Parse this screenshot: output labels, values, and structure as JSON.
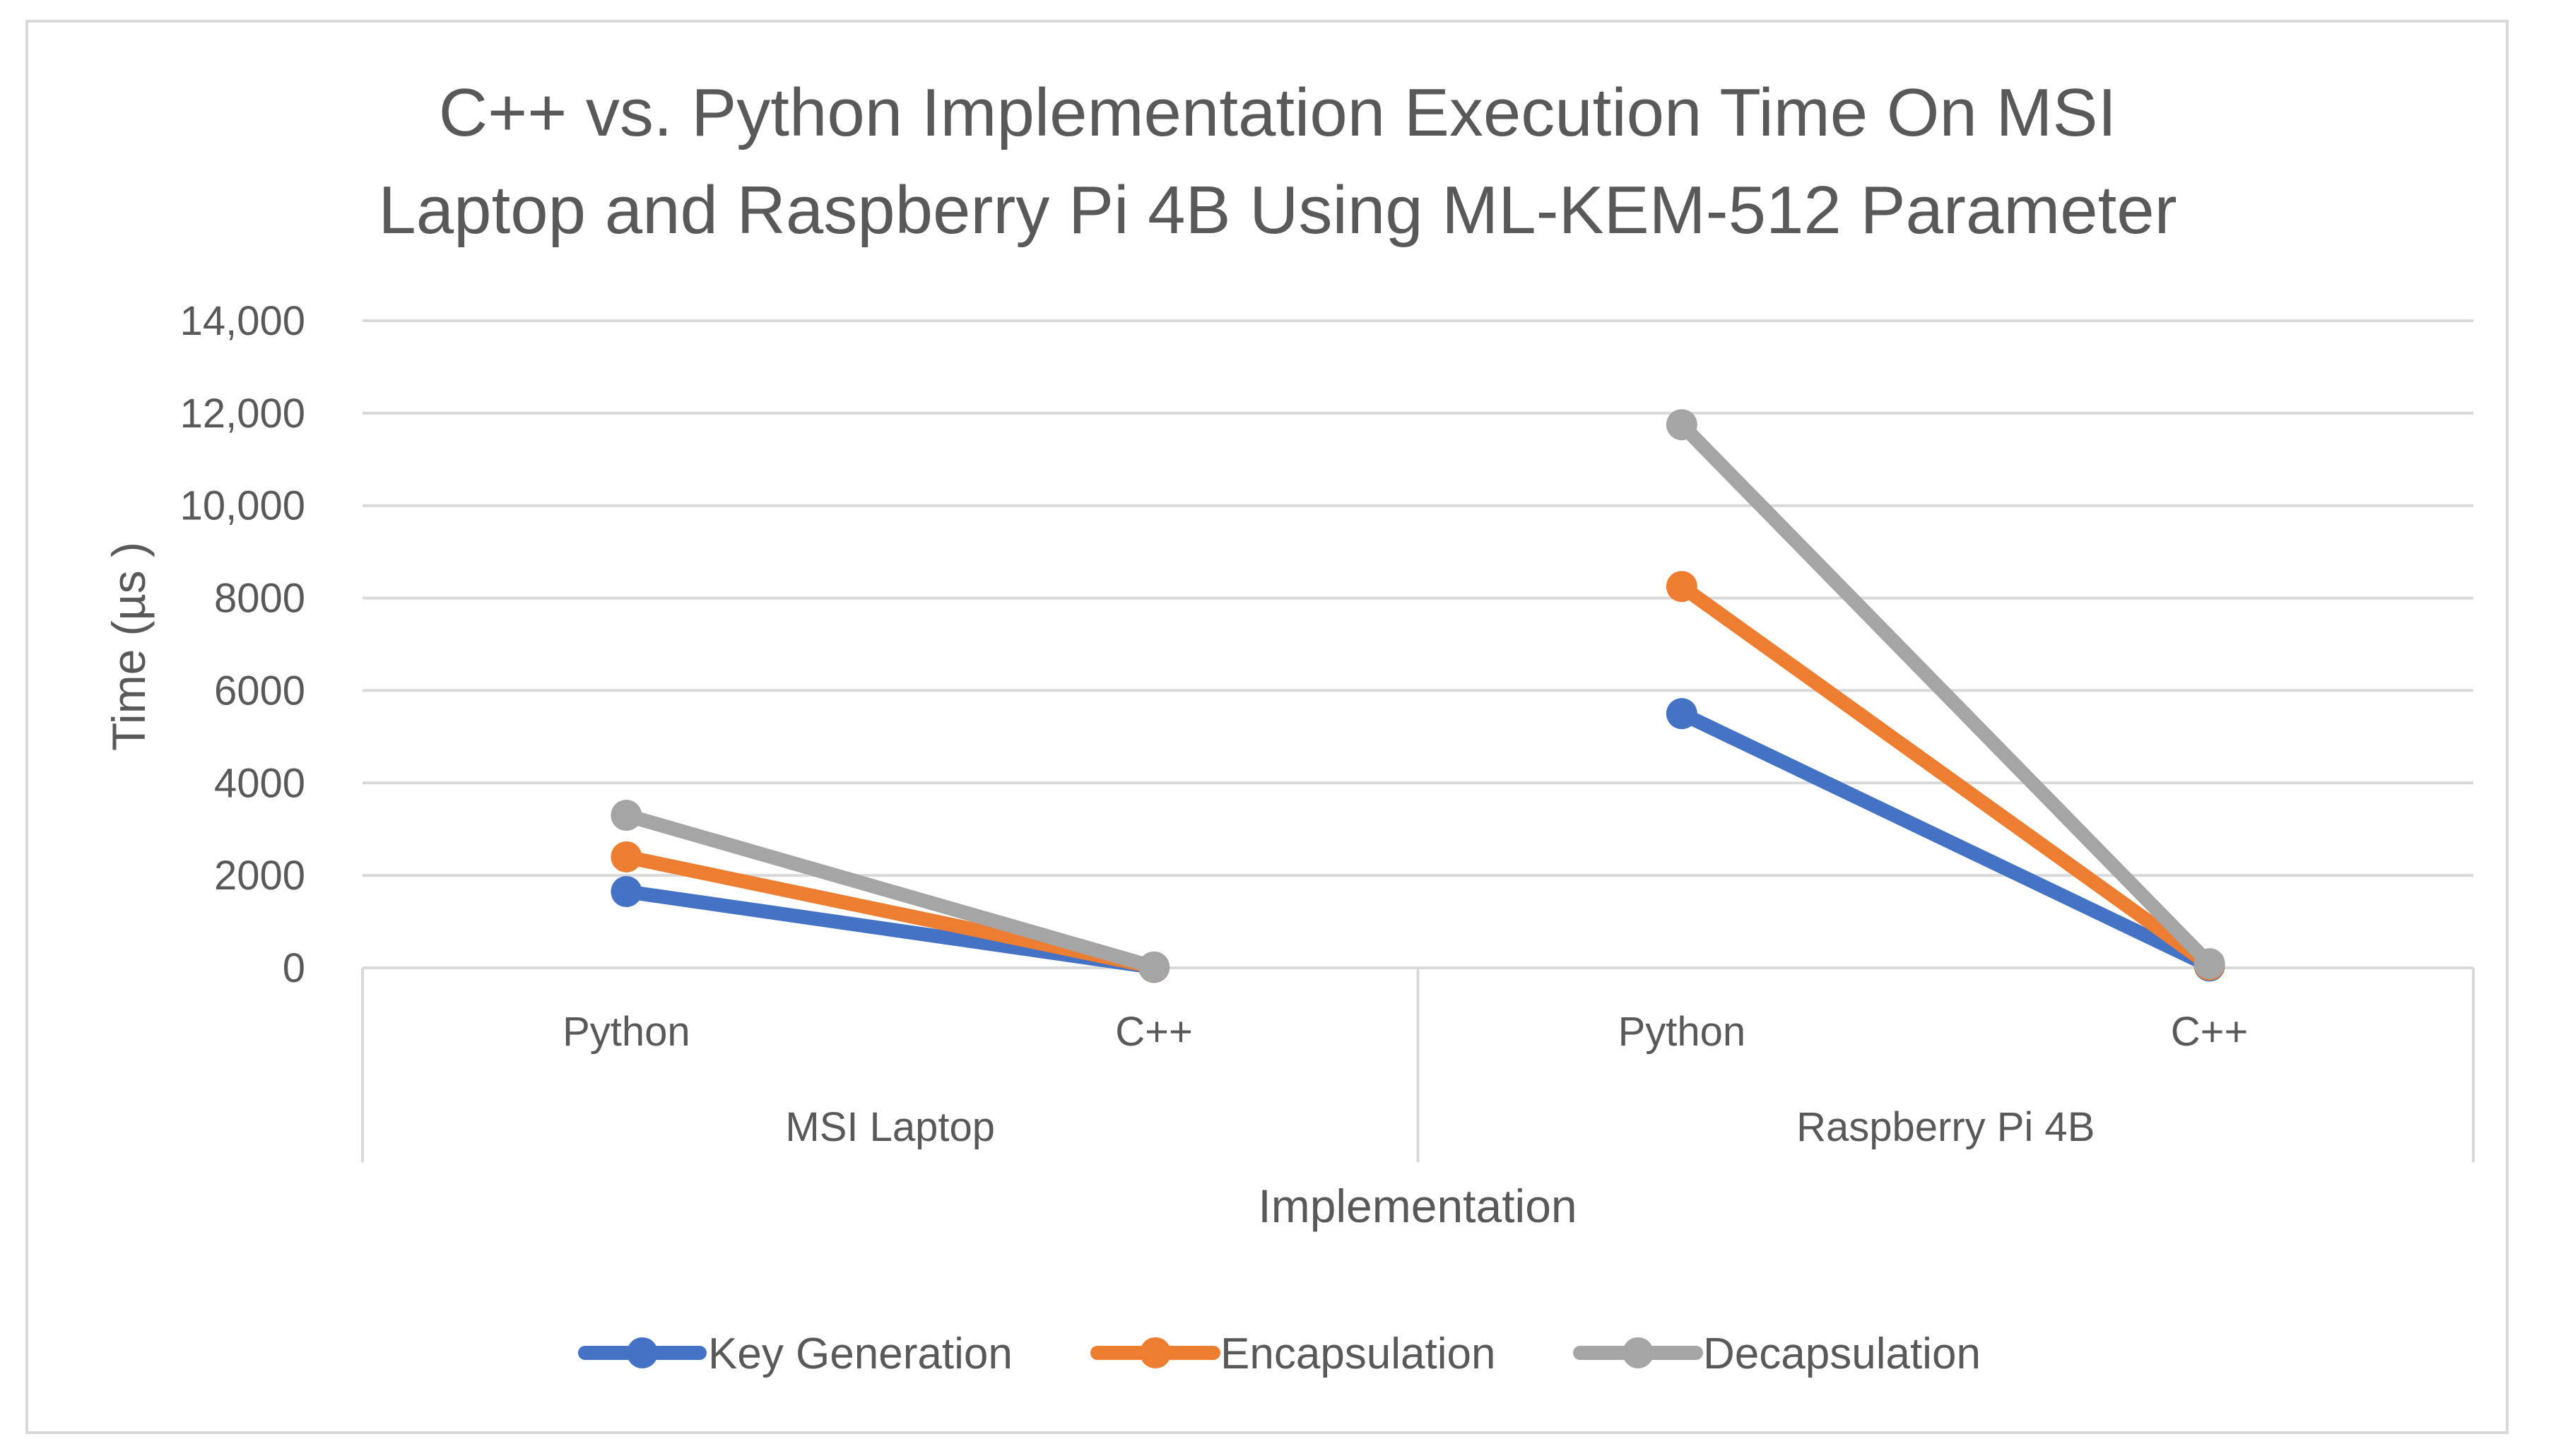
{
  "chart_data": {
    "type": "line",
    "title": "C++ vs. Python Implementation Execution Time On MSI Laptop and Raspberry Pi 4B Using ML-KEM-512 Parameter",
    "title_lines": [
      "C++ vs. Python Implementation Execution Time On MSI",
      "Laptop and Raspberry Pi 4B Using ML-KEM-512 Parameter"
    ],
    "xlabel": "Implementation",
    "ylabel": "Time (µs )",
    "ylim": [
      0,
      14000
    ],
    "y_ticks": [
      0,
      2000,
      4000,
      6000,
      8000,
      10000,
      12000,
      14000
    ],
    "y_tick_labels": [
      "0",
      "2000",
      "4000",
      "6000",
      "8000",
      "10,000",
      "12,000",
      "14,000"
    ],
    "grid": true,
    "legend_position": "bottom",
    "groups": [
      {
        "name": "MSI Laptop",
        "categories": [
          "Python",
          "C++"
        ]
      },
      {
        "name": "Raspberry Pi 4B",
        "categories": [
          "Python",
          "C++"
        ]
      }
    ],
    "series": [
      {
        "name": "Key Generation",
        "color": "#4472c4",
        "values": [
          [
            1650,
            10
          ],
          [
            5500,
            40
          ]
        ]
      },
      {
        "name": "Encapsulation",
        "color": "#ed7d31",
        "values": [
          [
            2400,
            15
          ],
          [
            8250,
            60
          ]
        ]
      },
      {
        "name": "Decapsulation",
        "color": "#a5a5a5",
        "values": [
          [
            3300,
            20
          ],
          [
            11750,
            90
          ]
        ]
      }
    ]
  }
}
